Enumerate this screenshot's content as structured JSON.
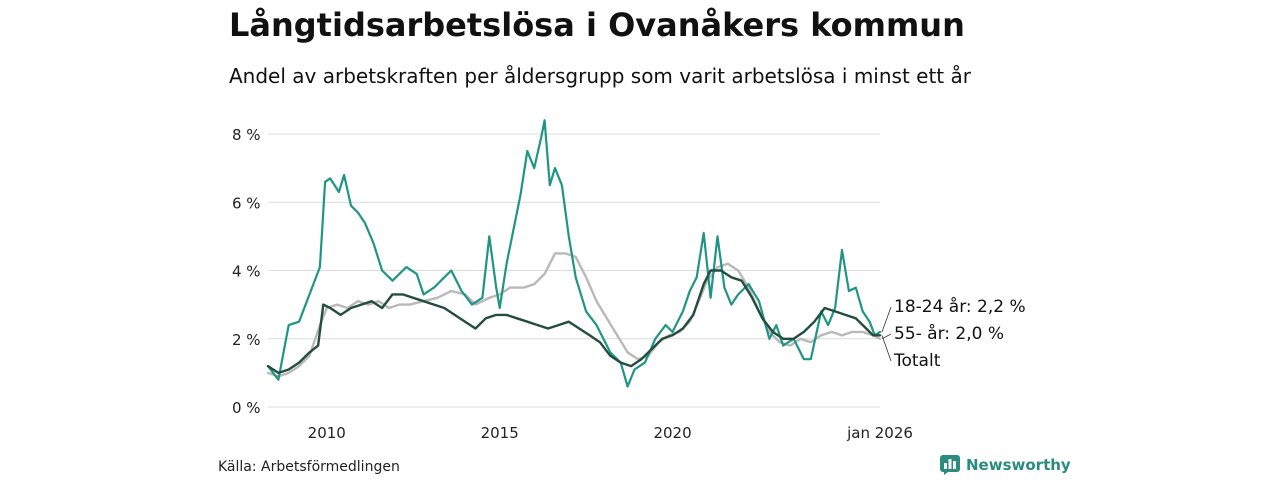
{
  "header": {
    "title": "Långtidsarbetslösa i Ovanåkers kommun",
    "subtitle": "Andel av arbetskraften per åldersgrupp som varit arbetslösa i minst ett år"
  },
  "footer": {
    "source": "Källa: Arbetsförmedlingen",
    "brand": "Newsworthy"
  },
  "colors": {
    "youth": "#1f9583",
    "senior": "#b9b9b9",
    "total": "#234e3e",
    "grid": "#dcdcdc",
    "brand": "#2a8c7d"
  },
  "chart_data": {
    "type": "line",
    "title": "Långtidsarbetslösa i Ovanåkers kommun",
    "xlabel": "",
    "ylabel": "",
    "ylim": [
      0,
      8
    ],
    "xlim": [
      2008.3,
      2026.0
    ],
    "grid": true,
    "yticks": [
      0,
      2,
      4,
      6,
      8
    ],
    "ytick_labels": [
      "0 %",
      "2 %",
      "4 %",
      "6 %",
      "8 %"
    ],
    "xticks": [
      2010,
      2015,
      2020,
      2026.0
    ],
    "xtick_labels": [
      "2010",
      "2015",
      "2020",
      "jan 2026"
    ],
    "series": [
      {
        "name": "18-24 år",
        "end_label": "18-24 år: 2,2 %",
        "points": [
          [
            2008.3,
            1.2
          ],
          [
            2008.6,
            0.8
          ],
          [
            2008.9,
            2.4
          ],
          [
            2009.2,
            2.5
          ],
          [
            2009.5,
            3.3
          ],
          [
            2009.8,
            4.1
          ],
          [
            2009.95,
            6.6
          ],
          [
            2010.1,
            6.7
          ],
          [
            2010.35,
            6.3
          ],
          [
            2010.5,
            6.8
          ],
          [
            2010.7,
            5.9
          ],
          [
            2010.9,
            5.7
          ],
          [
            2011.1,
            5.4
          ],
          [
            2011.35,
            4.8
          ],
          [
            2011.6,
            4.0
          ],
          [
            2011.9,
            3.7
          ],
          [
            2012.3,
            4.1
          ],
          [
            2012.6,
            3.9
          ],
          [
            2012.8,
            3.3
          ],
          [
            2013.1,
            3.5
          ],
          [
            2013.4,
            3.8
          ],
          [
            2013.6,
            4.0
          ],
          [
            2013.9,
            3.4
          ],
          [
            2014.2,
            3.0
          ],
          [
            2014.5,
            3.2
          ],
          [
            2014.7,
            5.0
          ],
          [
            2014.9,
            3.5
          ],
          [
            2015.0,
            2.9
          ],
          [
            2015.2,
            4.2
          ],
          [
            2015.4,
            5.2
          ],
          [
            2015.6,
            6.2
          ],
          [
            2015.8,
            7.5
          ],
          [
            2016.0,
            7.0
          ],
          [
            2016.2,
            7.9
          ],
          [
            2016.3,
            8.4
          ],
          [
            2016.45,
            6.5
          ],
          [
            2016.6,
            7.0
          ],
          [
            2016.8,
            6.5
          ],
          [
            2017.0,
            5.0
          ],
          [
            2017.2,
            3.8
          ],
          [
            2017.5,
            2.8
          ],
          [
            2017.8,
            2.4
          ],
          [
            2018.2,
            1.6
          ],
          [
            2018.5,
            1.3
          ],
          [
            2018.7,
            0.6
          ],
          [
            2018.9,
            1.1
          ],
          [
            2019.2,
            1.3
          ],
          [
            2019.5,
            2.0
          ],
          [
            2019.8,
            2.4
          ],
          [
            2020.0,
            2.2
          ],
          [
            2020.3,
            2.8
          ],
          [
            2020.5,
            3.4
          ],
          [
            2020.7,
            3.8
          ],
          [
            2020.9,
            5.1
          ],
          [
            2021.1,
            3.2
          ],
          [
            2021.3,
            5.0
          ],
          [
            2021.5,
            3.5
          ],
          [
            2021.7,
            3.0
          ],
          [
            2021.9,
            3.3
          ],
          [
            2022.2,
            3.6
          ],
          [
            2022.5,
            3.1
          ],
          [
            2022.8,
            2.0
          ],
          [
            2023.0,
            2.4
          ],
          [
            2023.2,
            1.8
          ],
          [
            2023.5,
            2.0
          ],
          [
            2023.8,
            1.4
          ],
          [
            2024.0,
            1.4
          ],
          [
            2024.3,
            2.8
          ],
          [
            2024.5,
            2.4
          ],
          [
            2024.7,
            2.9
          ],
          [
            2024.9,
            4.6
          ],
          [
            2025.1,
            3.4
          ],
          [
            2025.3,
            3.5
          ],
          [
            2025.5,
            2.8
          ],
          [
            2025.7,
            2.5
          ],
          [
            2025.85,
            2.1
          ],
          [
            2026.0,
            2.2
          ]
        ]
      },
      {
        "name": "55- år",
        "end_label": "55- år: 2,0 %",
        "points": [
          [
            2008.3,
            1.0
          ],
          [
            2008.6,
            0.9
          ],
          [
            2008.9,
            1.0
          ],
          [
            2009.2,
            1.2
          ],
          [
            2009.5,
            1.5
          ],
          [
            2009.8,
            2.4
          ],
          [
            2010.0,
            2.9
          ],
          [
            2010.3,
            3.0
          ],
          [
            2010.6,
            2.9
          ],
          [
            2010.9,
            3.1
          ],
          [
            2011.2,
            3.0
          ],
          [
            2011.5,
            3.1
          ],
          [
            2011.8,
            2.9
          ],
          [
            2012.1,
            3.0
          ],
          [
            2012.4,
            3.0
          ],
          [
            2012.8,
            3.1
          ],
          [
            2013.2,
            3.2
          ],
          [
            2013.6,
            3.4
          ],
          [
            2014.0,
            3.3
          ],
          [
            2014.3,
            3.0
          ],
          [
            2014.7,
            3.2
          ],
          [
            2015.0,
            3.3
          ],
          [
            2015.3,
            3.5
          ],
          [
            2015.7,
            3.5
          ],
          [
            2016.0,
            3.6
          ],
          [
            2016.3,
            3.9
          ],
          [
            2016.6,
            4.5
          ],
          [
            2016.9,
            4.5
          ],
          [
            2017.2,
            4.4
          ],
          [
            2017.5,
            3.8
          ],
          [
            2017.8,
            3.1
          ],
          [
            2018.1,
            2.6
          ],
          [
            2018.4,
            2.1
          ],
          [
            2018.7,
            1.6
          ],
          [
            2019.0,
            1.4
          ],
          [
            2019.3,
            1.5
          ],
          [
            2019.6,
            1.9
          ],
          [
            2019.9,
            2.1
          ],
          [
            2020.2,
            2.2
          ],
          [
            2020.5,
            2.5
          ],
          [
            2020.8,
            3.2
          ],
          [
            2021.0,
            3.7
          ],
          [
            2021.3,
            4.1
          ],
          [
            2021.6,
            4.2
          ],
          [
            2021.9,
            4.0
          ],
          [
            2022.2,
            3.5
          ],
          [
            2022.5,
            2.8
          ],
          [
            2022.8,
            2.2
          ],
          [
            2023.1,
            1.9
          ],
          [
            2023.4,
            1.8
          ],
          [
            2023.7,
            2.0
          ],
          [
            2024.0,
            1.9
          ],
          [
            2024.3,
            2.1
          ],
          [
            2024.6,
            2.2
          ],
          [
            2024.9,
            2.1
          ],
          [
            2025.2,
            2.2
          ],
          [
            2025.5,
            2.2
          ],
          [
            2025.8,
            2.1
          ],
          [
            2026.0,
            2.0
          ]
        ]
      },
      {
        "name": "Totalt",
        "end_label": "Totalt",
        "points": [
          [
            2008.3,
            1.2
          ],
          [
            2008.6,
            1.0
          ],
          [
            2008.9,
            1.1
          ],
          [
            2009.2,
            1.3
          ],
          [
            2009.5,
            1.6
          ],
          [
            2009.75,
            1.8
          ],
          [
            2009.9,
            3.0
          ],
          [
            2010.1,
            2.9
          ],
          [
            2010.4,
            2.7
          ],
          [
            2010.7,
            2.9
          ],
          [
            2011.0,
            3.0
          ],
          [
            2011.3,
            3.1
          ],
          [
            2011.6,
            2.9
          ],
          [
            2011.9,
            3.3
          ],
          [
            2012.2,
            3.3
          ],
          [
            2012.5,
            3.2
          ],
          [
            2012.8,
            3.1
          ],
          [
            2013.1,
            3.0
          ],
          [
            2013.4,
            2.9
          ],
          [
            2013.7,
            2.7
          ],
          [
            2014.0,
            2.5
          ],
          [
            2014.3,
            2.3
          ],
          [
            2014.6,
            2.6
          ],
          [
            2014.9,
            2.7
          ],
          [
            2015.2,
            2.7
          ],
          [
            2015.5,
            2.6
          ],
          [
            2015.8,
            2.5
          ],
          [
            2016.1,
            2.4
          ],
          [
            2016.4,
            2.3
          ],
          [
            2016.7,
            2.4
          ],
          [
            2017.0,
            2.5
          ],
          [
            2017.3,
            2.3
          ],
          [
            2017.6,
            2.1
          ],
          [
            2017.9,
            1.9
          ],
          [
            2018.2,
            1.5
          ],
          [
            2018.5,
            1.3
          ],
          [
            2018.8,
            1.2
          ],
          [
            2019.1,
            1.4
          ],
          [
            2019.4,
            1.7
          ],
          [
            2019.7,
            2.0
          ],
          [
            2020.0,
            2.1
          ],
          [
            2020.3,
            2.3
          ],
          [
            2020.6,
            2.7
          ],
          [
            2020.9,
            3.6
          ],
          [
            2021.1,
            4.0
          ],
          [
            2021.4,
            4.0
          ],
          [
            2021.7,
            3.8
          ],
          [
            2022.0,
            3.7
          ],
          [
            2022.3,
            3.2
          ],
          [
            2022.6,
            2.6
          ],
          [
            2022.9,
            2.2
          ],
          [
            2023.2,
            2.0
          ],
          [
            2023.5,
            2.0
          ],
          [
            2023.8,
            2.2
          ],
          [
            2024.1,
            2.5
          ],
          [
            2024.4,
            2.9
          ],
          [
            2024.7,
            2.8
          ],
          [
            2025.0,
            2.7
          ],
          [
            2025.3,
            2.6
          ],
          [
            2025.6,
            2.3
          ],
          [
            2025.8,
            2.1
          ],
          [
            2026.0,
            2.1
          ]
        ]
      }
    ]
  }
}
